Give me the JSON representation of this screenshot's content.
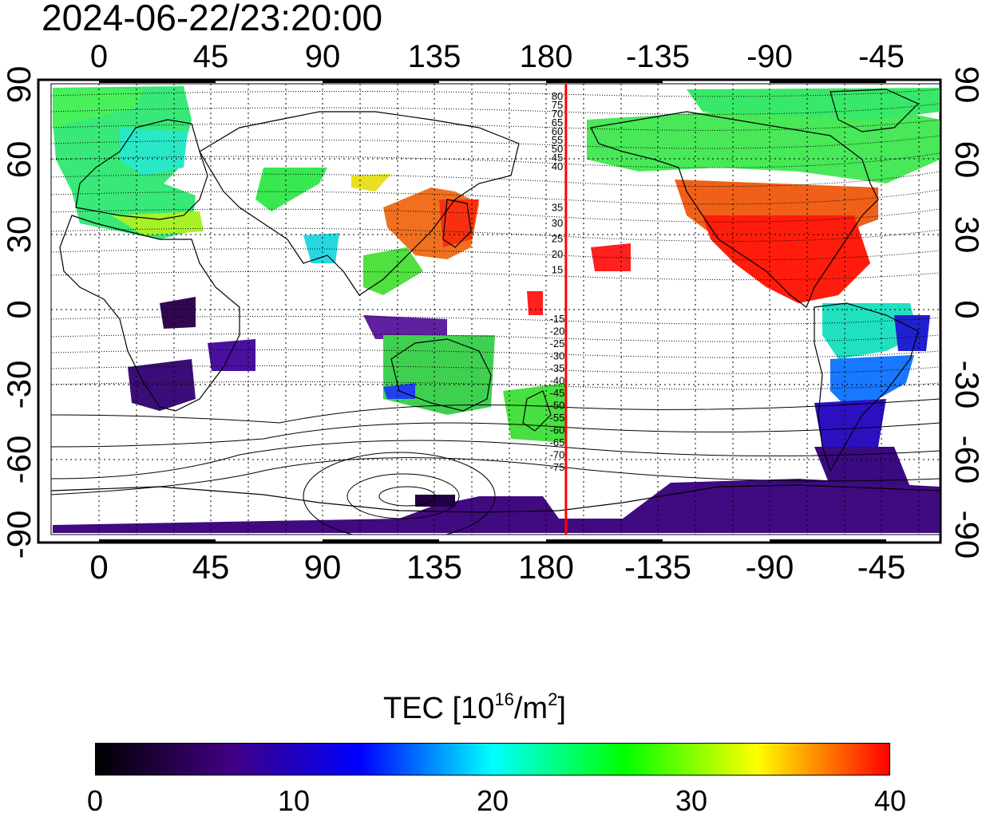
{
  "timestamp": "2024-06-22/23:20:00",
  "map": {
    "x_ticks_top": [
      "0",
      "45",
      "90",
      "135",
      "180",
      "-135",
      "-90",
      "-45"
    ],
    "x_ticks_bottom": [
      "0",
      "45",
      "90",
      "135",
      "180",
      "-135",
      "-90",
      "-45"
    ],
    "y_ticks_left": [
      "90",
      "60",
      "30",
      "0",
      "-30",
      "-60",
      "-90"
    ],
    "y_ticks_right": [
      "90",
      "60",
      "30",
      "0",
      "-30",
      "-60",
      "-90"
    ],
    "marker_longitude": -172,
    "marker_color": "#ff0000",
    "contour_labels_north": [
      "80",
      "75",
      "70",
      "65",
      "60",
      "55",
      "50",
      "45",
      "40",
      "35",
      "30",
      "25",
      "20",
      "15"
    ],
    "contour_labels_south": [
      "-15",
      "-20",
      "-25",
      "-30",
      "-35",
      "-40",
      "-45",
      "-50",
      "-55",
      "-60",
      "-65",
      "-70",
      "-75"
    ]
  },
  "colorbar": {
    "title_prefix": "TEC  [10",
    "title_exp1": "16",
    "title_mid": "/m",
    "title_exp2": "2",
    "title_suffix": "]",
    "ticks": [
      "0",
      "10",
      "20",
      "30",
      "40"
    ],
    "colors": [
      "#000000",
      "#400080",
      "#0000ff",
      "#00ffff",
      "#00ff00",
      "#ffff00",
      "#ff0000"
    ]
  }
}
